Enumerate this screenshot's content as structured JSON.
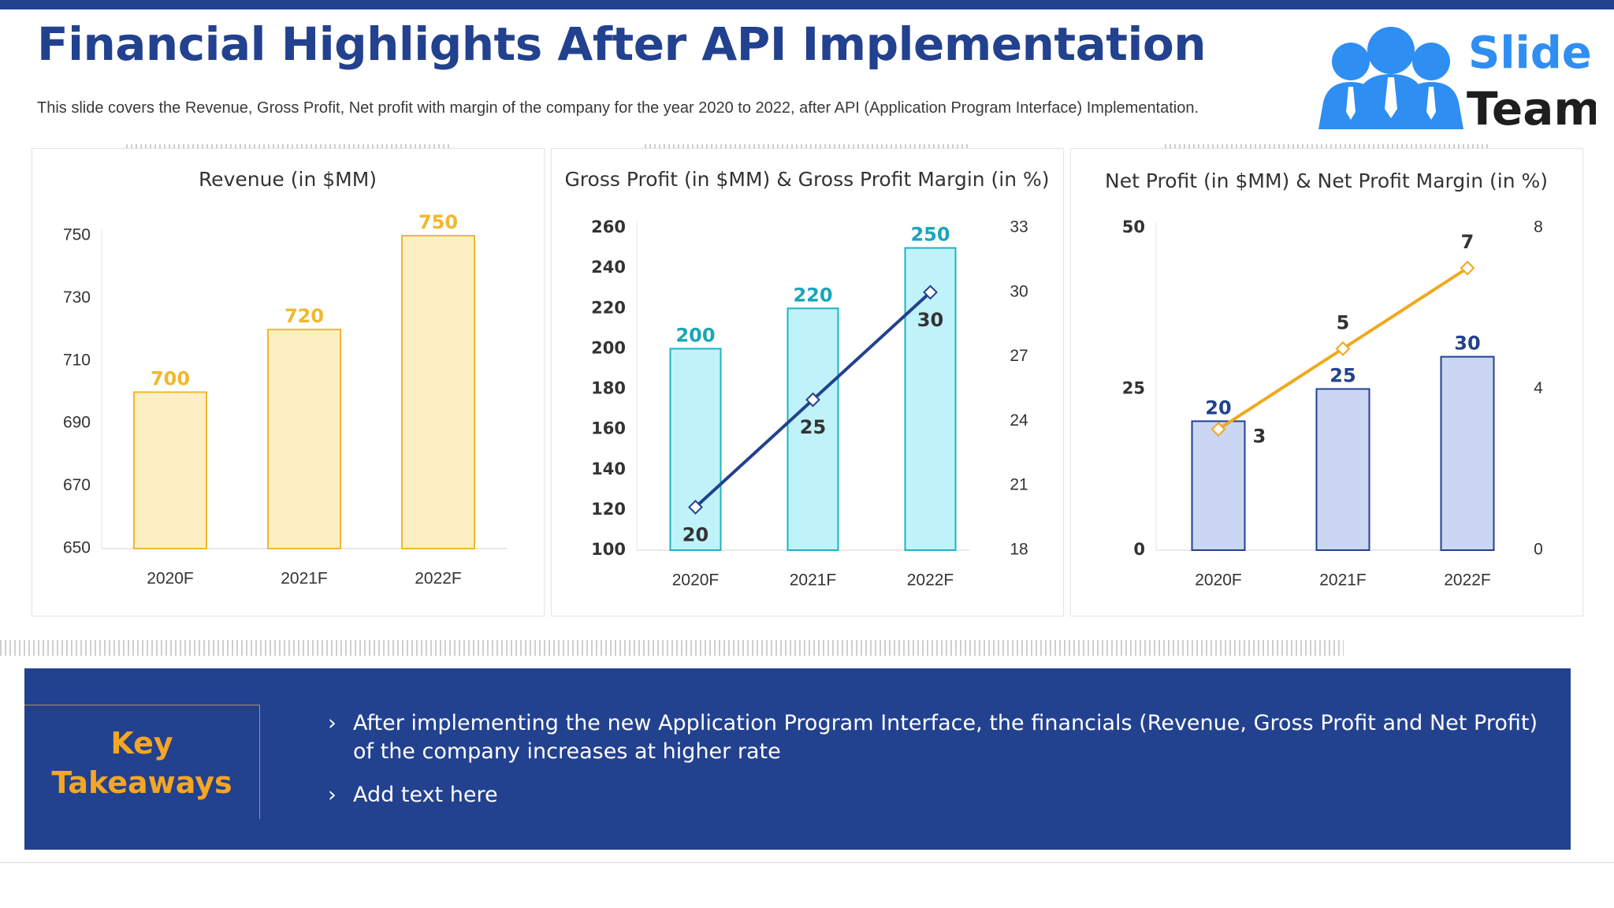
{
  "header": {
    "title": "Financial Highlights After API Implementation",
    "subtitle": "This slide covers the Revenue, Gross Profit, Net profit with margin of the company for the year 2020 to 2022, after API (Application Program Interface) Implementation."
  },
  "logo": {
    "word1": "Slide",
    "word2": "Team",
    "icon": "people-group-icon"
  },
  "chart_data": [
    {
      "type": "bar",
      "title": "Revenue (in $MM)",
      "categories": [
        "2020F",
        "2021F",
        "2022F"
      ],
      "series": [
        {
          "values": [
            700,
            720,
            750
          ]
        }
      ],
      "ylim": [
        650,
        750
      ],
      "yticks": [
        650,
        670,
        690,
        710,
        730,
        750
      ],
      "bar_fill": "#fdefc3",
      "bar_stroke": "#f0b82e",
      "label_color": "#f0b82e"
    },
    {
      "type": "bar+line",
      "title": "Gross Profit (in $MM) & Gross Profit Margin (in %)",
      "categories": [
        "2020F",
        "2021F",
        "2022F"
      ],
      "series": [
        {
          "values": [
            200,
            220,
            250
          ],
          "axis": "left"
        },
        {
          "values": [
            20,
            25,
            30
          ],
          "axis": "right"
        }
      ],
      "ylim": [
        100,
        260
      ],
      "yticks": [
        100,
        120,
        140,
        160,
        180,
        200,
        220,
        240,
        260
      ],
      "y2lim": [
        18,
        33
      ],
      "y2ticks": [
        18,
        21,
        24,
        27,
        30,
        33
      ],
      "bar_fill": "#bff3f9",
      "bar_stroke": "#1eb3c4",
      "label_color": "#1aa5b8",
      "line_color": "#22418f"
    },
    {
      "type": "bar+line",
      "title": "Net Profit (in $MM) & Net Profit Margin (in %)",
      "categories": [
        "2020F",
        "2021F",
        "2022F"
      ],
      "series": [
        {
          "values": [
            20,
            25,
            30
          ],
          "axis": "left"
        },
        {
          "values": [
            3,
            5,
            7
          ],
          "axis": "right"
        }
      ],
      "ylim": [
        0,
        50
      ],
      "yticks": [
        0,
        25,
        50
      ],
      "y2lim": [
        0,
        8
      ],
      "y2ticks": [
        0,
        4,
        8
      ],
      "bar_fill": "#cbd6f2",
      "bar_stroke": "#22418f",
      "label_color": "#22418f",
      "line_color": "#f0a81c"
    }
  ],
  "takeaways": {
    "heading_line1": "Key",
    "heading_line2": "Takeaways",
    "bullet_glyph": "›",
    "items": [
      "After implementing the new Application Program Interface, the financials (Revenue, Gross Profit and Net Profit) of the company increases at higher rate",
      "Add text here"
    ]
  }
}
